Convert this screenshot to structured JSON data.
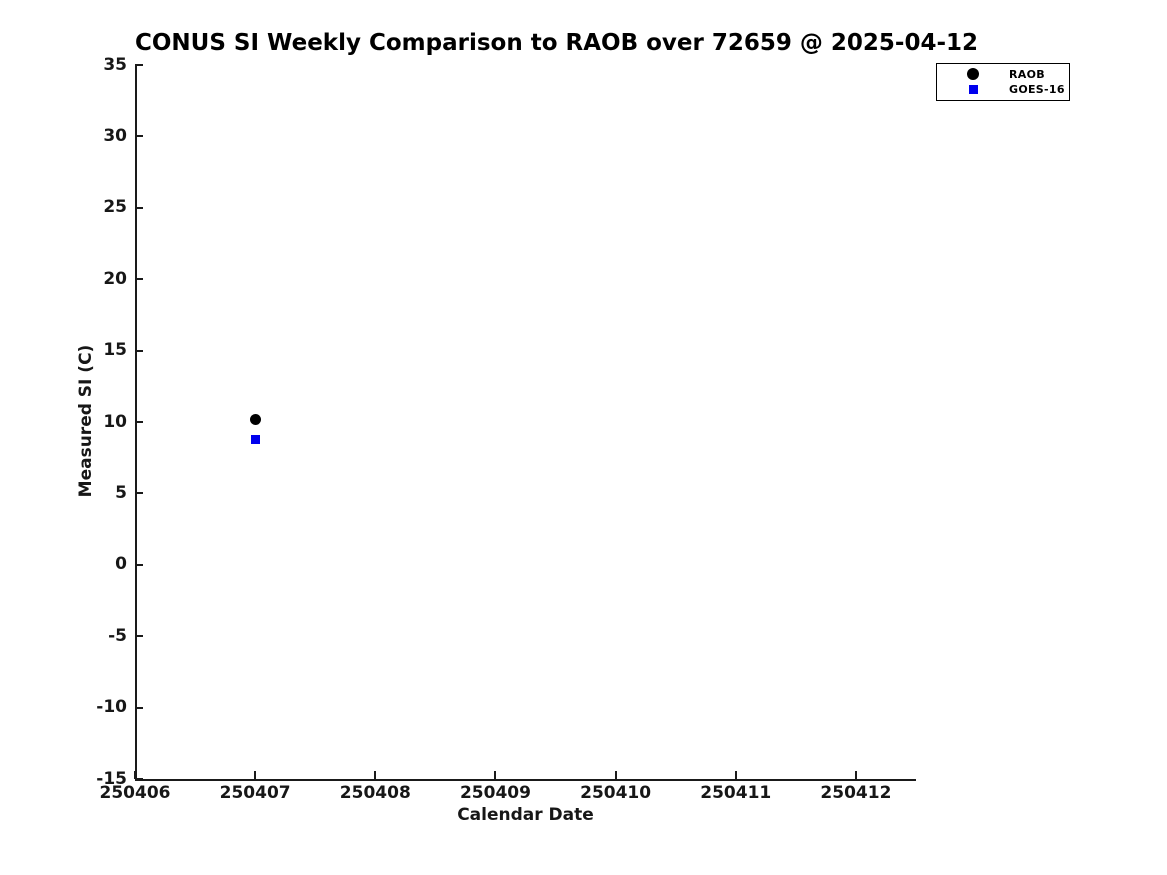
{
  "title": "CONUS SI Weekly Comparison to RAOB over 72659 @ 2025-04-12",
  "chart_data": {
    "type": "scatter",
    "title": "CONUS SI Weekly Comparison to RAOB over 72659 @ 2025-04-12",
    "xlabel": "Calendar Date",
    "ylabel": "Measured SI (C)",
    "xlim": [
      250406,
      250412.5
    ],
    "ylim": [
      -15,
      35
    ],
    "x_ticks": [
      250406,
      250407,
      250408,
      250409,
      250410,
      250411,
      250412
    ],
    "y_ticks": [
      -15,
      -10,
      -5,
      0,
      5,
      10,
      15,
      20,
      25,
      30,
      35
    ],
    "grid": false,
    "legend_position": "top-right outside plot",
    "series": [
      {
        "name": "RAOB",
        "marker": "circle",
        "color": "#000000",
        "points": [
          {
            "x": 250407,
            "y": 10.2
          }
        ]
      },
      {
        "name": "GOES-16",
        "marker": "square",
        "color": "#0000ee",
        "points": [
          {
            "x": 250407,
            "y": 8.8
          }
        ]
      }
    ]
  },
  "colors": {
    "background": "#ffffff",
    "axis": "#1a1a1a",
    "text": "#171717",
    "raob_marker": "#000000",
    "goes16_marker": "#0000ee"
  }
}
